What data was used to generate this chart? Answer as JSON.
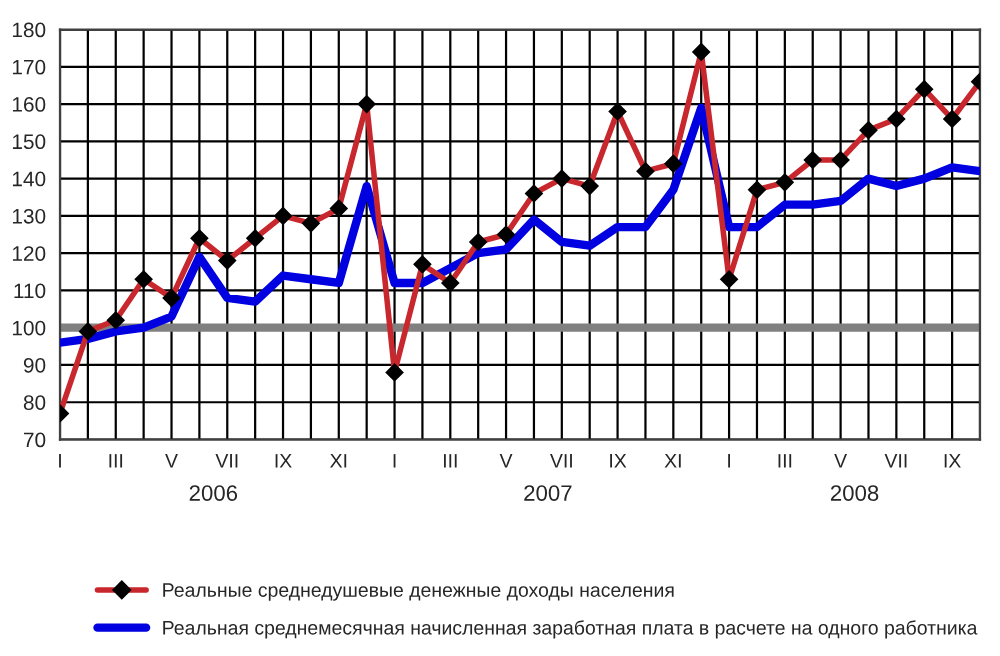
{
  "chart_data": {
    "type": "line",
    "categories": [
      "I",
      null,
      "III",
      null,
      "V",
      null,
      "VII",
      null,
      "IX",
      null,
      "XI",
      null,
      "I",
      null,
      "III",
      null,
      "V",
      null,
      "VII",
      null,
      "IX",
      null,
      "XI",
      null,
      "I",
      null,
      "III",
      null,
      "V",
      null,
      "VII",
      null,
      "IX",
      null
    ],
    "series": [
      {
        "name": "Реальные среднедушевые денежные доходы населения",
        "color": "#c8282d",
        "marker": "diamond",
        "values": [
          77,
          99,
          102,
          113,
          108,
          124,
          118,
          124,
          130,
          128,
          132,
          160,
          88,
          117,
          112,
          123,
          125,
          136,
          140,
          138,
          158,
          142,
          144,
          174,
          113,
          137,
          139,
          145,
          145,
          153,
          156,
          164,
          156,
          166
        ]
      },
      {
        "name": "Реальная среднемесячная начисленная заработная плата в расчете на одного работника",
        "color": "#0000e0",
        "marker": "none",
        "values": [
          96,
          97,
          99,
          100,
          103,
          119,
          108,
          107,
          114,
          113,
          112,
          138,
          112,
          112,
          116,
          120,
          121,
          129,
          123,
          122,
          127,
          127,
          137,
          159,
          127,
          127,
          133,
          133,
          134,
          140,
          138,
          140,
          143,
          142
        ]
      }
    ],
    "annotations": [
      "2006",
      "2007",
      "2008"
    ],
    "ylim": [
      70,
      180
    ],
    "yticks": [
      70,
      80,
      90,
      100,
      110,
      120,
      130,
      140,
      150,
      160,
      170,
      180
    ],
    "ref_lines": [
      {
        "axis": "y",
        "value": 100,
        "color": "#808080"
      }
    ],
    "grid": true,
    "legend": "bottom",
    "line_style": "solid"
  }
}
